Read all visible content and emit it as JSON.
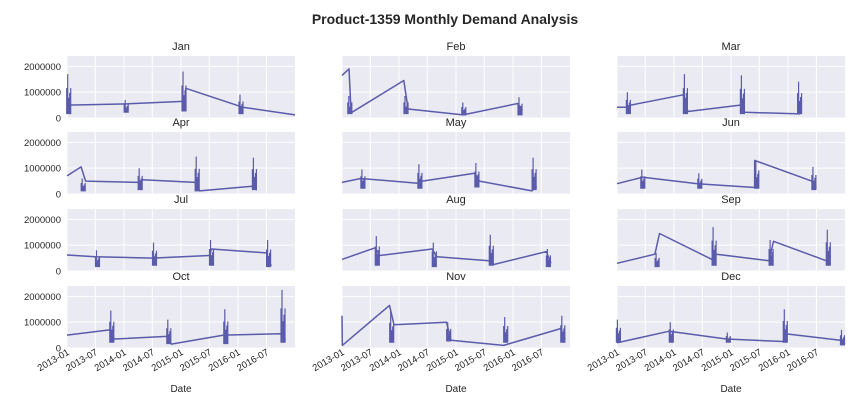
{
  "chart_data": {
    "type": "line",
    "title": "Product-1359 Monthly Demand Analysis",
    "xlabel": "Date",
    "ylabel": "",
    "xlim": [
      "2013-01-01",
      "2016-12-31"
    ],
    "ylim": [
      0,
      2400000
    ],
    "yticks": [
      0,
      1000000,
      2000000
    ],
    "ytick_labels": [
      "0",
      "1000000",
      "2000000"
    ],
    "xticks": [
      "2013-01-01",
      "2013-07-01",
      "2014-01-01",
      "2014-07-01",
      "2015-01-01",
      "2015-07-01",
      "2016-01-01",
      "2016-07-01"
    ],
    "xtick_labels": [
      "2013-01",
      "2013-07",
      "2014-01",
      "2014-07",
      "2015-01",
      "2015-07",
      "2016-01",
      "2016-07"
    ],
    "grid": true,
    "colors": {
      "line": "#5b5bab",
      "panel_bg": "#eaeaf2",
      "grid": "#ffffff",
      "text": "#262626"
    },
    "panels": [
      {
        "name": "Jan",
        "points": [
          [
            "2013-01-01",
            580000
          ],
          [
            "2013-01-03",
            500000
          ],
          [
            "2014-01-31",
            550000
          ],
          [
            "2015-01-30",
            650000
          ],
          [
            "2015-02-01",
            1150000
          ],
          [
            "2016-01-31",
            420000
          ],
          [
            "2016-12-31",
            120000
          ]
        ],
        "bursts": [
          [
            "2013-01-12",
            1700000,
            150000
          ],
          [
            "2014-01-15",
            700000,
            200000
          ],
          [
            "2015-01-20",
            1800000,
            250000
          ],
          [
            "2016-01-20",
            900000,
            150000
          ]
        ]
      },
      {
        "name": "Feb",
        "points": [
          [
            "2013-01-01",
            1650000
          ],
          [
            "2013-02-15",
            1900000
          ],
          [
            "2013-02-28",
            200000
          ],
          [
            "2014-02-01",
            1450000
          ],
          [
            "2014-02-28",
            350000
          ],
          [
            "2015-02-15",
            120000
          ],
          [
            "2016-02-01",
            560000
          ],
          [
            "2016-02-29",
            300000
          ]
        ],
        "bursts": [
          [
            "2013-02-20",
            850000,
            150000
          ],
          [
            "2014-02-15",
            850000,
            150000
          ],
          [
            "2015-02-20",
            600000,
            100000
          ],
          [
            "2016-02-15",
            800000,
            100000
          ]
        ]
      },
      {
        "name": "Mar",
        "points": [
          [
            "2013-01-01",
            420000
          ],
          [
            "2013-03-01",
            420000
          ],
          [
            "2013-03-31",
            500000
          ],
          [
            "2014-03-01",
            900000
          ],
          [
            "2014-03-31",
            250000
          ],
          [
            "2015-03-01",
            500000
          ],
          [
            "2015-03-31",
            220000
          ],
          [
            "2016-03-20",
            160000
          ]
        ],
        "bursts": [
          [
            "2013-03-15",
            1000000,
            150000
          ],
          [
            "2014-03-15",
            1700000,
            150000
          ],
          [
            "2015-03-15",
            1650000,
            150000
          ],
          [
            "2016-03-15",
            1400000,
            150000
          ]
        ]
      },
      {
        "name": "Apr",
        "points": [
          [
            "2013-01-01",
            700000
          ],
          [
            "2013-04-01",
            1050000
          ],
          [
            "2013-04-30",
            500000
          ],
          [
            "2014-04-01",
            450000
          ],
          [
            "2014-04-30",
            550000
          ],
          [
            "2015-04-01",
            450000
          ],
          [
            "2015-04-30",
            120000
          ],
          [
            "2016-04-01",
            300000
          ],
          [
            "2016-04-30",
            150000
          ]
        ],
        "bursts": [
          [
            "2013-04-15",
            600000,
            100000
          ],
          [
            "2014-04-15",
            1000000,
            150000
          ],
          [
            "2015-04-15",
            1450000,
            100000
          ],
          [
            "2016-04-15",
            1400000,
            150000
          ]
        ]
      },
      {
        "name": "May",
        "points": [
          [
            "2013-01-01",
            450000
          ],
          [
            "2013-05-01",
            600000
          ],
          [
            "2014-05-01",
            420000
          ],
          [
            "2014-05-31",
            500000
          ],
          [
            "2015-05-01",
            800000
          ],
          [
            "2015-05-31",
            500000
          ],
          [
            "2016-05-01",
            120000
          ],
          [
            "2016-05-31",
            300000
          ]
        ],
        "bursts": [
          [
            "2013-05-15",
            950000,
            200000
          ],
          [
            "2014-05-15",
            1150000,
            200000
          ],
          [
            "2015-05-15",
            1200000,
            250000
          ],
          [
            "2016-05-15",
            1400000,
            150000
          ]
        ]
      },
      {
        "name": "Jun",
        "points": [
          [
            "2013-01-01",
            400000
          ],
          [
            "2013-06-15",
            650000
          ],
          [
            "2014-06-01",
            400000
          ],
          [
            "2015-06-01",
            250000
          ],
          [
            "2015-06-02",
            1300000
          ],
          [
            "2016-06-01",
            500000
          ],
          [
            "2016-06-30",
            250000
          ]
        ],
        "bursts": [
          [
            "2013-06-15",
            950000,
            200000
          ],
          [
            "2014-06-15",
            800000,
            200000
          ],
          [
            "2015-06-15",
            1300000,
            200000
          ],
          [
            "2016-06-15",
            1050000,
            150000
          ]
        ]
      },
      {
        "name": "Jul",
        "points": [
          [
            "2013-01-01",
            620000
          ],
          [
            "2013-07-01",
            550000
          ],
          [
            "2014-07-01",
            500000
          ],
          [
            "2015-07-01",
            600000
          ],
          [
            "2015-07-15",
            850000
          ],
          [
            "2016-07-01",
            700000
          ],
          [
            "2016-07-31",
            200000
          ]
        ],
        "bursts": [
          [
            "2013-07-15",
            800000,
            150000
          ],
          [
            "2014-07-15",
            1100000,
            200000
          ],
          [
            "2015-07-15",
            1200000,
            200000
          ],
          [
            "2016-07-15",
            1200000,
            150000
          ]
        ]
      },
      {
        "name": "Aug",
        "points": [
          [
            "2013-01-01",
            450000
          ],
          [
            "2013-08-01",
            900000
          ],
          [
            "2013-08-31",
            600000
          ],
          [
            "2014-08-01",
            850000
          ],
          [
            "2014-08-31",
            550000
          ],
          [
            "2015-08-01",
            400000
          ],
          [
            "2015-08-31",
            250000
          ],
          [
            "2016-08-01",
            750000
          ],
          [
            "2016-08-31",
            300000
          ]
        ],
        "bursts": [
          [
            "2013-08-15",
            1350000,
            200000
          ],
          [
            "2014-08-15",
            1100000,
            150000
          ],
          [
            "2015-08-15",
            1400000,
            200000
          ],
          [
            "2016-08-15",
            850000,
            150000
          ]
        ]
      },
      {
        "name": "Sep",
        "points": [
          [
            "2013-01-01",
            300000
          ],
          [
            "2013-09-01",
            650000
          ],
          [
            "2013-09-30",
            1450000
          ],
          [
            "2014-09-01",
            450000
          ],
          [
            "2014-09-30",
            650000
          ],
          [
            "2015-09-01",
            400000
          ],
          [
            "2015-09-30",
            1150000
          ],
          [
            "2016-09-01",
            400000
          ],
          [
            "2016-09-30",
            600000
          ]
        ],
        "bursts": [
          [
            "2013-09-15",
            700000,
            150000
          ],
          [
            "2014-09-15",
            1700000,
            200000
          ],
          [
            "2015-09-15",
            1200000,
            200000
          ],
          [
            "2016-09-15",
            1600000,
            200000
          ]
        ]
      },
      {
        "name": "Oct",
        "points": [
          [
            "2013-01-01",
            500000
          ],
          [
            "2013-10-01",
            700000
          ],
          [
            "2013-10-31",
            350000
          ],
          [
            "2014-10-01",
            450000
          ],
          [
            "2014-10-31",
            150000
          ],
          [
            "2015-10-01",
            500000
          ],
          [
            "2016-10-01",
            550000
          ],
          [
            "2016-10-31",
            300000
          ]
        ],
        "bursts": [
          [
            "2013-10-15",
            1450000,
            200000
          ],
          [
            "2014-10-15",
            1100000,
            150000
          ],
          [
            "2015-10-15",
            1500000,
            150000
          ],
          [
            "2016-10-15",
            2250000,
            200000
          ]
        ]
      },
      {
        "name": "Nov",
        "points": [
          [
            "2013-01-01",
            1250000
          ],
          [
            "2013-01-03",
            100000
          ],
          [
            "2013-11-01",
            1650000
          ],
          [
            "2013-11-30",
            900000
          ],
          [
            "2014-11-01",
            1000000
          ],
          [
            "2014-11-30",
            300000
          ],
          [
            "2015-11-01",
            100000
          ],
          [
            "2016-11-01",
            750000
          ],
          [
            "2016-11-30",
            350000
          ]
        ],
        "bursts": [
          [
            "2013-11-15",
            1400000,
            200000
          ],
          [
            "2014-11-15",
            1000000,
            250000
          ],
          [
            "2015-11-15",
            1200000,
            200000
          ],
          [
            "2016-11-15",
            1250000,
            200000
          ]
        ]
      },
      {
        "name": "Dec",
        "points": [
          [
            "2013-01-01",
            200000
          ],
          [
            "2013-12-01",
            650000
          ],
          [
            "2014-12-01",
            350000
          ],
          [
            "2015-12-01",
            250000
          ],
          [
            "2015-12-15",
            550000
          ],
          [
            "2016-12-01",
            300000
          ],
          [
            "2016-12-31",
            150000
          ]
        ],
        "bursts": [
          [
            "2013-01-10",
            1100000,
            200000
          ],
          [
            "2013-12-15",
            1000000,
            200000
          ],
          [
            "2014-12-15",
            600000,
            200000
          ],
          [
            "2015-12-15",
            1500000,
            200000
          ],
          [
            "2016-12-15",
            700000,
            100000
          ]
        ]
      }
    ]
  }
}
